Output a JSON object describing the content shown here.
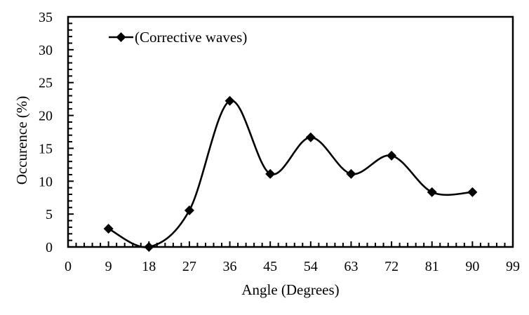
{
  "chart_data": {
    "type": "line",
    "title": "",
    "xlabel": "Angle  (Degrees)",
    "ylabel": "Occurence  (%)",
    "xlim": [
      0,
      99
    ],
    "ylim": [
      0,
      35
    ],
    "xticks": [
      0,
      9,
      18,
      27,
      36,
      45,
      54,
      63,
      72,
      81,
      90,
      99
    ],
    "yticks": [
      0,
      5,
      10,
      15,
      20,
      25,
      30,
      35
    ],
    "grid": false,
    "legend_position": "top-left inside",
    "smoothed": true,
    "marker": "diamond",
    "series": [
      {
        "name": "(Corrective waves)",
        "color": "#000000",
        "x": [
          9,
          18,
          27,
          36,
          45,
          54,
          63,
          72,
          81,
          90
        ],
        "values": [
          2.78,
          0,
          5.56,
          22.22,
          11.11,
          16.67,
          11.11,
          13.89,
          8.33,
          8.33
        ]
      }
    ]
  },
  "legend": {
    "label": "(Corrective waves)"
  },
  "axes": {
    "x_title": "Angle  (Degrees)",
    "y_title": "Occurence  (%)"
  }
}
